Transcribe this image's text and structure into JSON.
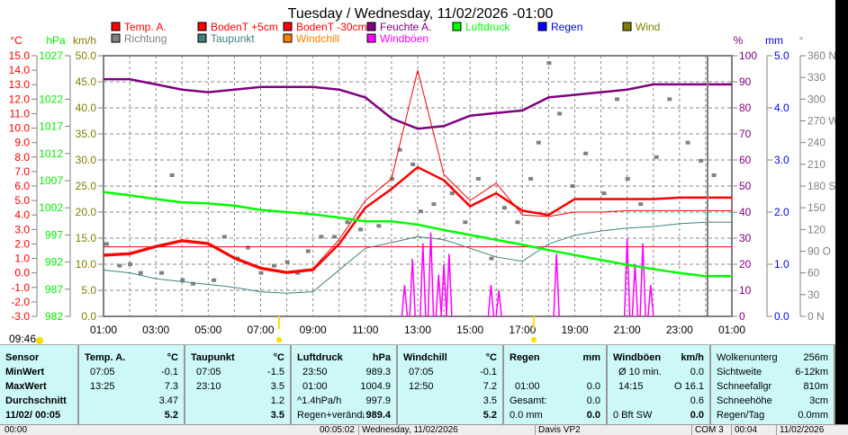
{
  "chart_data": {
    "type": "line",
    "title": "Tuesday / Wednesday, 11/02/2026  -01:00",
    "x_hours": [
      1,
      2,
      3,
      4,
      5,
      6,
      7,
      8,
      9,
      10,
      11,
      12,
      13,
      14,
      15,
      16,
      17,
      18,
      19,
      20,
      21,
      22,
      23,
      24,
      25
    ],
    "x_ticks": [
      "01:00",
      "03:00",
      "05:00",
      "07:00",
      "09:00",
      "11:00",
      "13:00",
      "15:00",
      "17:00",
      "19:00",
      "21:00",
      "23:00",
      "01:00"
    ],
    "axes": {
      "temp": {
        "label": "°C",
        "range": [
          -3,
          15
        ],
        "ticks": [
          "15.0",
          "14.0",
          "13.0",
          "12.0",
          "11.0",
          "10.0",
          "9.0",
          "8.0",
          "7.0",
          "6.0",
          "5.0",
          "4.0",
          "3.0",
          "2.0",
          "1.0",
          "0.0",
          "-1.0",
          "-2.0",
          "-3.0"
        ],
        "color": "#ff0000"
      },
      "pressure": {
        "label": "hPa",
        "range": [
          982,
          1027
        ],
        "ticks": [
          "1027",
          "1022",
          "1017",
          "1012",
          "1007",
          "1002",
          "997",
          "992",
          "987",
          "982"
        ],
        "color": "#00ee00"
      },
      "wind": {
        "label": "km/h",
        "range": [
          0,
          50
        ],
        "ticks": [
          "50.0",
          "45.0",
          "40.0",
          "35.0",
          "30.0",
          "25.0",
          "20.0",
          "15.0",
          "10.0",
          "5.0",
          "0.0"
        ],
        "color": "#808000"
      },
      "humidity": {
        "label": "%",
        "range": [
          0,
          100
        ],
        "ticks": [
          "100",
          "90",
          "80",
          "70",
          "60",
          "50",
          "40",
          "30",
          "20",
          "10",
          "0"
        ],
        "color": "#800080"
      },
      "rain": {
        "label": "mm",
        "range": [
          0,
          5
        ],
        "ticks": [
          "5.0",
          "4.0",
          "3.0",
          "2.0",
          "1.0",
          "0.0"
        ],
        "color": "#0000ff"
      },
      "direction": {
        "label": "°",
        "range": [
          0,
          360
        ],
        "ticks": [
          "360 N",
          "330",
          "300",
          "270 W",
          "240",
          "210",
          "180 S",
          "150",
          "120",
          "90  O",
          "60",
          "30",
          "0    N"
        ],
        "color": "#808080"
      }
    },
    "legend": [
      {
        "name": "Temp. A.",
        "color": "#ff0000"
      },
      {
        "name": "BodenT +5cm",
        "color": "#ff0000"
      },
      {
        "name": "BodenT -30cm",
        "color": "#ff0000"
      },
      {
        "name": "Feuchte A.",
        "color": "#800080"
      },
      {
        "name": "Luftdruck",
        "color": "#00ff00"
      },
      {
        "name": "Regen",
        "color": "#0000ff"
      },
      {
        "name": "Wind",
        "color": "#808000"
      },
      {
        "name": "Richtung",
        "color": "#808080"
      },
      {
        "name": "Taupunkt",
        "color": "#408080"
      },
      {
        "name": "Windchill",
        "color": "#ff8000"
      },
      {
        "name": "Windböen",
        "color": "#ff00ff"
      }
    ],
    "series": [
      {
        "name": "Feuchte A.",
        "axis": "humidity",
        "values": [
          91,
          91,
          89,
          87,
          86,
          87,
          88,
          88,
          88,
          87,
          84,
          76,
          72,
          73,
          77,
          78,
          79,
          84,
          85,
          86,
          87,
          89,
          89,
          89,
          89
        ]
      },
      {
        "name": "Temp. A.",
        "axis": "temp",
        "values": [
          1.2,
          1.3,
          1.8,
          2.2,
          2.0,
          1.0,
          0.3,
          0.0,
          0.2,
          2.0,
          4.5,
          5.8,
          7.3,
          6.4,
          4.6,
          5.5,
          4.3,
          4.0,
          5.1,
          5.1,
          5.1,
          5.1,
          5.2,
          5.2,
          5.2
        ]
      },
      {
        "name": "BodenT +5cm",
        "axis": "temp",
        "values": [
          1.3,
          1.4,
          1.9,
          2.3,
          2.1,
          1.1,
          0.4,
          0.1,
          0.3,
          2.3,
          5.0,
          6.5,
          14.0,
          6.8,
          5.0,
          6.2,
          4.0,
          3.9,
          4.2,
          4.2,
          4.3,
          4.3,
          4.3,
          4.3,
          4.3
        ]
      },
      {
        "name": "BodenT -30cm",
        "axis": "temp",
        "values": [
          1.8,
          1.8,
          1.8,
          1.8,
          1.8,
          1.8,
          1.8,
          1.8,
          1.8,
          1.8,
          1.8,
          1.8,
          1.8,
          1.8,
          1.8,
          1.8,
          1.8,
          1.8,
          1.8,
          1.8,
          1.8,
          1.8,
          1.8,
          1.8,
          1.8
        ]
      },
      {
        "name": "Taupunkt",
        "axis": "temp",
        "values": [
          0.2,
          0.0,
          -0.4,
          -0.6,
          -0.8,
          -1.0,
          -1.3,
          -1.4,
          -1.3,
          0.2,
          1.7,
          2.1,
          2.5,
          2.3,
          1.7,
          1.1,
          0.8,
          2.0,
          2.6,
          2.9,
          3.1,
          3.2,
          3.4,
          3.5,
          3.5
        ]
      },
      {
        "name": "Luftdruck",
        "axis": "pressure",
        "values": [
          1004.9,
          1004.3,
          1003.6,
          1003.0,
          1002.8,
          1002.4,
          1001.6,
          1001.2,
          1000.8,
          1000.2,
          999.5,
          999.5,
          998.9,
          997.9,
          997.0,
          996.1,
          995.2,
          994.2,
          993.3,
          992.4,
          991.5,
          990.7,
          990.0,
          989.4,
          989.4
        ]
      },
      {
        "name": "Windböen",
        "axis": "wind",
        "bars": [
          [
            12.5,
            6
          ],
          [
            12.8,
            11
          ],
          [
            13.2,
            14
          ],
          [
            13.5,
            16.1
          ],
          [
            13.8,
            8
          ],
          [
            14.0,
            10
          ],
          [
            14.2,
            12
          ],
          [
            15.8,
            6
          ],
          [
            16.1,
            5
          ],
          [
            18.3,
            12
          ],
          [
            21.0,
            15
          ],
          [
            21.3,
            10
          ],
          [
            21.6,
            14
          ],
          [
            21.9,
            6
          ]
        ]
      },
      {
        "name": "Richtung",
        "axis": "direction",
        "points": [
          [
            1.1,
            100
          ],
          [
            1.6,
            70
          ],
          [
            2.0,
            72
          ],
          [
            2.4,
            60
          ],
          [
            3.2,
            60
          ],
          [
            3.6,
            195
          ],
          [
            4.0,
            50
          ],
          [
            4.4,
            45
          ],
          [
            5.2,
            50
          ],
          [
            5.6,
            110
          ],
          [
            6.1,
            80
          ],
          [
            6.5,
            95
          ],
          [
            7.0,
            60
          ],
          [
            7.5,
            70
          ],
          [
            8.0,
            75
          ],
          [
            8.4,
            60
          ],
          [
            8.8,
            90
          ],
          [
            9.3,
            110
          ],
          [
            9.8,
            110
          ],
          [
            10.3,
            130
          ],
          [
            10.8,
            120
          ],
          [
            11.5,
            125
          ],
          [
            12.0,
            190
          ],
          [
            12.3,
            230
          ],
          [
            12.8,
            210
          ],
          [
            13.1,
            145
          ],
          [
            13.6,
            155
          ],
          [
            14.3,
            170
          ],
          [
            14.8,
            130
          ],
          [
            15.3,
            190
          ],
          [
            15.8,
            80
          ],
          [
            16.3,
            150
          ],
          [
            16.8,
            130
          ],
          [
            17.3,
            190
          ],
          [
            17.6,
            240
          ],
          [
            18.0,
            350
          ],
          [
            18.4,
            280
          ],
          [
            18.9,
            180
          ],
          [
            19.4,
            225
          ],
          [
            20.1,
            170
          ],
          [
            20.6,
            300
          ],
          [
            21.0,
            190
          ],
          [
            21.5,
            155
          ],
          [
            22.1,
            220
          ],
          [
            22.6,
            300
          ],
          [
            23.3,
            240
          ],
          [
            23.8,
            215
          ],
          [
            24.3,
            195
          ]
        ]
      }
    ],
    "current_time_marker": "00:05",
    "sun_label": "09:46"
  },
  "table": {
    "columns": [
      {
        "title": "Sensor",
        "unit": "",
        "rows": [
          [
            "MinWert",
            ""
          ],
          [
            "MaxWert",
            ""
          ],
          [
            "Durchschnitt",
            ""
          ],
          [
            "11/02/ 00:05",
            ""
          ]
        ]
      },
      {
        "title": "Temp. A.",
        "unit": "°C",
        "rows": [
          [
            "07:05",
            "-0.1"
          ],
          [
            "13:25",
            "7.3"
          ],
          [
            "",
            "3.47"
          ],
          [
            "",
            "5.2"
          ]
        ]
      },
      {
        "title": "Taupunkt",
        "unit": "°C",
        "rows": [
          [
            "07:05",
            "-1.5"
          ],
          [
            "23:10",
            "3.5"
          ],
          [
            "",
            "1.2"
          ],
          [
            "",
            "3.5"
          ]
        ]
      },
      {
        "title": "Luftdruck",
        "unit": "hPa",
        "rows": [
          [
            "23:50",
            "989.3"
          ],
          [
            "01:00",
            "1004.9"
          ],
          [
            "^1.4hPa/h",
            "997.9"
          ],
          [
            "Regen+veränd",
            "↓989.4"
          ]
        ]
      },
      {
        "title": "Windchill",
        "unit": "°C",
        "rows": [
          [
            "07:05",
            "-0.1"
          ],
          [
            "12:50",
            "7.2"
          ],
          [
            "",
            "3.5"
          ],
          [
            "",
            "5.2"
          ]
        ]
      },
      {
        "title": "Regen",
        "unit": "mm",
        "rows": [
          [
            "",
            ""
          ],
          [
            "01:00",
            "0.0"
          ],
          [
            "Gesamt:",
            "0.0"
          ],
          [
            "0.0 mm",
            "0.0"
          ]
        ]
      },
      {
        "title": "Windböen",
        "unit": "km/h",
        "rows": [
          [
            "Ø 10 min.",
            "0.0"
          ],
          [
            "14:15",
            "O 16.1"
          ],
          [
            "",
            "0.6"
          ],
          [
            "0 Bft SW",
            "0.0"
          ]
        ]
      },
      {
        "title": "Wolkenunterg",
        "unit": "256m",
        "rows": [
          [
            "Sichtweite",
            "6-12km"
          ],
          [
            "Schneefallgr",
            "810m"
          ],
          [
            "Schneehöhe",
            "3cm"
          ],
          [
            "Regen/Tag",
            "0.0mm"
          ]
        ]
      }
    ]
  },
  "status": [
    "00:00",
    "00:05:02",
    "Wednesday, 11/02/2026",
    "Davis VP2",
    "COM 3",
    "00:04",
    "11/02/2026"
  ]
}
